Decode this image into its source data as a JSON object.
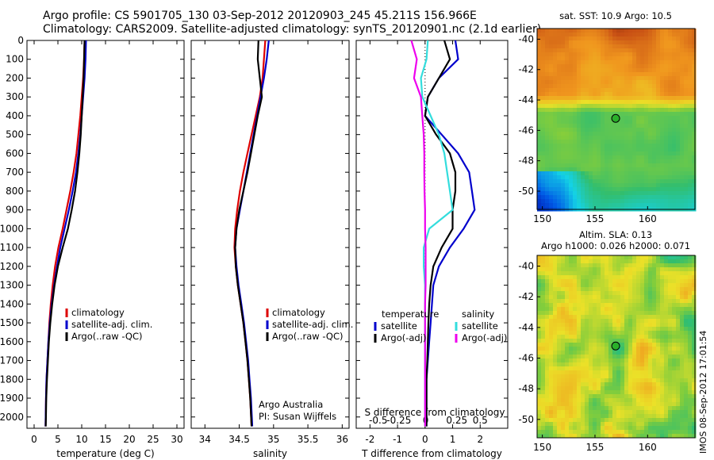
{
  "header": {
    "line1": "Argo profile: CS 5901705_130 03-Sep-2012 20120903_245 45.211S 156.966E",
    "line2": "Climatology: CARS2009. Satellite-adjusted climatology: synTS_20120901.nc (2.1d earlier)"
  },
  "colors": {
    "climatology": "#dd0000",
    "satellite": "#0000cc",
    "argo": "#000000",
    "sal_satellite": "#33dddd",
    "sal_argo": "#ee00ee"
  },
  "chart_data": [
    {
      "type": "line",
      "panel": "temperature",
      "xlabel": "temperature (deg C)",
      "ylabel": "",
      "xlim": [
        -1.5,
        31.5
      ],
      "ylim": [
        2060,
        0
      ],
      "xticks": [
        0,
        5,
        10,
        15,
        20,
        25,
        30
      ],
      "yticks": [
        0,
        100,
        200,
        300,
        400,
        500,
        600,
        700,
        800,
        900,
        1000,
        1100,
        1200,
        1300,
        1400,
        1500,
        1600,
        1700,
        1800,
        1900,
        2000
      ],
      "legend": [
        "climatology",
        "satellite-adj. clim.",
        "Argo(..raw -QC)"
      ],
      "legend_position": "lower-right",
      "series": [
        {
          "name": "climatology",
          "color_key": "climatology",
          "x": [
            10.6,
            10.5,
            10.3,
            10.0,
            9.7,
            9.3,
            8.9,
            8.3,
            7.6,
            6.8,
            6.0,
            5.1,
            4.4,
            3.9,
            3.5,
            3.2,
            3.0,
            2.8,
            2.6,
            2.5,
            2.4
          ],
          "y": [
            0,
            100,
            200,
            300,
            400,
            500,
            600,
            700,
            800,
            900,
            1000,
            1100,
            1200,
            1300,
            1400,
            1500,
            1600,
            1700,
            1800,
            1900,
            2050
          ]
        },
        {
          "name": "satellite-adj. clim.",
          "color_key": "satellite",
          "x": [
            10.9,
            10.8,
            10.6,
            10.3,
            10.0,
            9.7,
            9.3,
            8.8,
            8.1,
            7.3,
            6.4,
            5.5,
            4.8,
            4.2,
            3.7,
            3.3,
            3.0,
            2.8,
            2.6,
            2.5,
            2.4
          ],
          "y": [
            0,
            100,
            200,
            300,
            400,
            500,
            600,
            700,
            800,
            900,
            1000,
            1100,
            1200,
            1300,
            1400,
            1500,
            1600,
            1700,
            1800,
            1900,
            2050
          ]
        },
        {
          "name": "Argo(..raw -QC)",
          "color_key": "argo",
          "x": [
            10.6,
            10.5,
            10.4,
            10.2,
            10.0,
            9.8,
            9.5,
            9.1,
            8.6,
            7.9,
            7.1,
            6.0,
            5.0,
            4.3,
            3.8,
            3.4,
            3.1,
            2.9,
            2.7,
            2.55,
            2.45
          ],
          "y": [
            0,
            100,
            200,
            300,
            400,
            500,
            600,
            700,
            800,
            900,
            1000,
            1100,
            1200,
            1300,
            1400,
            1500,
            1600,
            1700,
            1800,
            1900,
            2050
          ]
        }
      ]
    },
    {
      "type": "line",
      "panel": "salinity",
      "xlabel": "salinity",
      "xlim": [
        33.8,
        36.1
      ],
      "ylim": [
        2060,
        0
      ],
      "xticks": [
        34,
        34.5,
        35,
        35.5,
        36
      ],
      "legend": [
        "climatology",
        "satellite-adj. clim.",
        "Argo(..raw -QC)"
      ],
      "legend_position": "lower-right",
      "annotation": [
        "Argo Australia",
        "PI: Susan Wijffels"
      ],
      "series": [
        {
          "name": "climatology",
          "color_key": "climatology",
          "x": [
            34.88,
            34.86,
            34.84,
            34.8,
            34.74,
            34.68,
            34.62,
            34.56,
            34.51,
            34.47,
            34.44,
            34.43,
            34.45,
            34.48,
            34.52,
            34.56,
            34.59,
            34.62,
            34.64,
            34.66,
            34.68
          ],
          "y": [
            0,
            100,
            200,
            300,
            400,
            500,
            600,
            700,
            800,
            900,
            1000,
            1100,
            1200,
            1300,
            1400,
            1500,
            1600,
            1700,
            1800,
            1900,
            2050
          ]
        },
        {
          "name": "satellite-adj. clim.",
          "color_key": "satellite",
          "x": [
            34.93,
            34.9,
            34.86,
            34.81,
            34.76,
            34.71,
            34.66,
            34.61,
            34.56,
            34.51,
            34.46,
            34.44,
            34.46,
            34.49,
            34.53,
            34.57,
            34.6,
            34.63,
            34.65,
            34.67,
            34.69
          ],
          "y": [
            0,
            100,
            200,
            300,
            400,
            500,
            600,
            700,
            800,
            900,
            1000,
            1100,
            1200,
            1300,
            1400,
            1500,
            1600,
            1700,
            1800,
            1900,
            2050
          ]
        },
        {
          "name": "Argo(..raw -QC)",
          "color_key": "argo",
          "x": [
            34.78,
            34.77,
            34.8,
            34.83,
            34.77,
            34.72,
            34.67,
            34.62,
            34.56,
            34.5,
            34.46,
            34.44,
            34.45,
            34.48,
            34.52,
            34.56,
            34.59,
            34.62,
            34.64,
            34.66,
            34.68
          ],
          "y": [
            0,
            100,
            200,
            300,
            400,
            500,
            600,
            700,
            800,
            900,
            1000,
            1100,
            1200,
            1300,
            1400,
            1500,
            1600,
            1700,
            1800,
            1900,
            2050
          ]
        }
      ]
    },
    {
      "type": "line",
      "panel": "difference",
      "xlabel": "T difference from climatology",
      "xlabel_top": "S difference from climatology",
      "xlim": [
        -2.5,
        3.0
      ],
      "ylim": [
        2060,
        0
      ],
      "xticks": [
        -2,
        -1,
        0,
        1,
        2
      ],
      "sticks_labels": [
        "-0.5",
        "-0.25",
        "0",
        "0.25",
        "0.5"
      ],
      "legend_temperature": [
        "temperature",
        "satellite",
        "Argo(-adj)"
      ],
      "legend_salinity": [
        "salinity",
        "satellite",
        "Argo(-adj)"
      ],
      "series": [
        {
          "name": "satellite",
          "group": "temperature",
          "color_key": "satellite",
          "x": [
            1.1,
            1.2,
            0.5,
            0.1,
            0.0,
            0.6,
            1.2,
            1.6,
            1.7,
            1.8,
            1.4,
            0.9,
            0.5,
            0.3,
            0.25,
            0.2,
            0.15,
            0.1,
            0.05,
            0.05,
            0.05
          ],
          "y": [
            0,
            100,
            200,
            300,
            400,
            500,
            600,
            700,
            800,
            900,
            1000,
            1100,
            1200,
            1300,
            1400,
            1500,
            1600,
            1700,
            1800,
            1900,
            2050
          ]
        },
        {
          "name": "Argo(-adj)",
          "group": "temperature",
          "color_key": "argo",
          "x": [
            0.7,
            0.9,
            0.5,
            0.1,
            0.0,
            0.4,
            0.9,
            1.1,
            1.1,
            1.0,
            1.0,
            0.6,
            0.3,
            0.2,
            0.15,
            0.12,
            0.1,
            0.08,
            0.05,
            0.05,
            0.05
          ],
          "y": [
            0,
            100,
            200,
            300,
            400,
            500,
            600,
            700,
            800,
            900,
            1000,
            1100,
            1200,
            1300,
            1400,
            1500,
            1600,
            1700,
            1800,
            1900,
            2050
          ]
        },
        {
          "name": "satellite",
          "group": "salinity",
          "color_key": "sal_satellite",
          "x": [
            0.1,
            0.05,
            -0.15,
            -0.1,
            0.2,
            0.5,
            0.7,
            0.8,
            0.9,
            1.0,
            0.15,
            -0.05,
            -0.05,
            0.0,
            0.0,
            0.0,
            0.0,
            0.0,
            0.0,
            0.0,
            0.0
          ],
          "y": [
            0,
            100,
            200,
            300,
            400,
            500,
            600,
            700,
            800,
            900,
            1000,
            1100,
            1200,
            1300,
            1400,
            1500,
            1600,
            1700,
            1800,
            1900,
            2050
          ]
        },
        {
          "name": "Argo(-adj)",
          "group": "salinity",
          "color_key": "sal_argo",
          "x": [
            -0.5,
            -0.3,
            -0.4,
            -0.15,
            -0.1,
            -0.05,
            -0.03,
            -0.03,
            -0.02,
            0.0,
            0.0,
            0.02,
            0.02,
            0.02,
            0.0,
            0.0,
            0.0,
            0.0,
            0.0,
            0.0,
            0.0
          ],
          "y": [
            0,
            100,
            200,
            300,
            400,
            500,
            600,
            700,
            800,
            900,
            1000,
            1100,
            1200,
            1300,
            1400,
            1500,
            1600,
            1700,
            1800,
            1900,
            2050
          ]
        }
      ]
    },
    {
      "type": "heatmap",
      "panel": "sst_map",
      "title": "sat. SST: 10.9  Argo: 10.5",
      "xticks": [
        150,
        155,
        160
      ],
      "yticks": [
        -40,
        -42,
        -44,
        -46,
        -48,
        -50
      ],
      "xlim": [
        149.5,
        164.5
      ],
      "ylim": [
        -51.2,
        -39.3
      ],
      "marker": {
        "lon": 156.966,
        "lat": -45.211
      }
    },
    {
      "type": "heatmap",
      "panel": "sla_map",
      "title": "Altim. SLA: 0.13",
      "subtitle": "Argo h1000: 0.026  h2000: 0.071",
      "xticks": [
        150,
        155,
        160
      ],
      "yticks": [
        -40,
        -42,
        -44,
        -46,
        -48,
        -50
      ],
      "xlim": [
        149.5,
        164.5
      ],
      "ylim": [
        -51.2,
        -39.3
      ],
      "marker": {
        "lon": 156.966,
        "lat": -45.211
      }
    }
  ],
  "stamp": "IMOS 08-Sep-2012 17:01:54"
}
